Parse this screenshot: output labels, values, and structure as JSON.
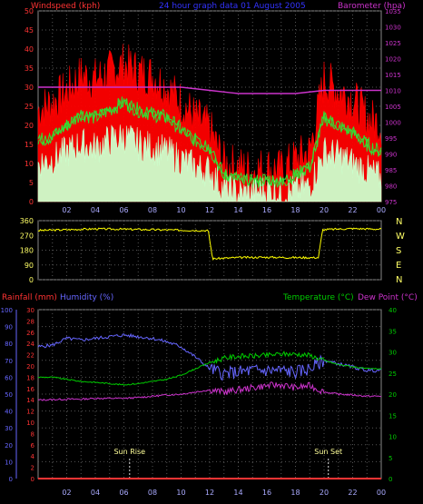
{
  "page_title": "24 hour graph data  01 August 2005",
  "chart_data": [
    {
      "type": "line",
      "id": "wind-pressure",
      "title": "24 hour graph data  01 August 2005",
      "ylabel_left": "Windspeed (kph)",
      "ylabel_right": "Barometer (hpa)",
      "ylim_left": [
        0,
        50
      ],
      "ylim_right": [
        975,
        1035
      ],
      "yticks_left": [
        "0",
        "5",
        "10",
        "15",
        "20",
        "25",
        "30",
        "35",
        "40",
        "45",
        "50"
      ],
      "yticks_right": [
        "975",
        "980",
        "985",
        "990",
        "995",
        "1000",
        "1005",
        "1010",
        "1015",
        "1020",
        "1025",
        "1030",
        "1035"
      ],
      "x_tick_labels": [
        "02",
        "04",
        "06",
        "08",
        "10",
        "12",
        "14",
        "16",
        "18",
        "20",
        "22",
        "00"
      ],
      "grid": true,
      "colors": {
        "gust": "#ff0000",
        "average": "#33dd33",
        "windspeed": "#ccffcc",
        "barometer": "#cc33cc",
        "left_axis": "#ff3333",
        "right_axis": "#cc33cc",
        "title": "#3333ff"
      },
      "series": [
        {
          "key": "gust",
          "color": "#ff0000",
          "x": [
            0,
            1,
            2,
            3,
            4,
            5,
            6,
            7,
            8,
            9,
            10,
            11,
            12,
            13,
            14,
            15,
            16,
            17,
            18,
            19,
            20,
            21,
            22,
            23,
            24
          ],
          "values": [
            24,
            26,
            29,
            33,
            32,
            34,
            36,
            34,
            33,
            30,
            26,
            22,
            19,
            10,
            9,
            8,
            9,
            8,
            11,
            13,
            32,
            29,
            27,
            22,
            20
          ]
        },
        {
          "key": "average",
          "color": "#33dd33",
          "x": [
            0,
            1,
            2,
            3,
            4,
            5,
            6,
            7,
            8,
            9,
            10,
            11,
            12,
            13,
            14,
            15,
            16,
            17,
            18,
            19,
            20,
            21,
            22,
            23,
            24
          ],
          "values": [
            16,
            17,
            20,
            23,
            22,
            24,
            26,
            24,
            23,
            22,
            19,
            16,
            14,
            7,
            6,
            5,
            6,
            5,
            7,
            9,
            22,
            20,
            18,
            15,
            13
          ]
        },
        {
          "key": "windspeed",
          "color": "#ccffcc",
          "x": [
            0,
            1,
            2,
            3,
            4,
            5,
            6,
            7,
            8,
            9,
            10,
            11,
            12,
            13,
            14,
            15,
            16,
            17,
            18,
            19,
            20,
            21,
            22,
            23,
            24
          ],
          "values": [
            10,
            11,
            13,
            15,
            14,
            16,
            17,
            15,
            14,
            13,
            11,
            9,
            8,
            3,
            2,
            2,
            3,
            2,
            3,
            4,
            13,
            12,
            10,
            8,
            6
          ]
        },
        {
          "key": "barometer",
          "color": "#cc33cc",
          "axis": "right",
          "x": [
            0,
            2,
            4,
            6,
            8,
            10,
            12,
            14,
            16,
            18,
            20,
            22,
            24
          ],
          "values": [
            1011,
            1011,
            1011,
            1011,
            1011,
            1011,
            1010,
            1009,
            1009,
            1009,
            1010,
            1010,
            1010
          ]
        }
      ]
    },
    {
      "type": "line",
      "id": "wind-direction",
      "ylim": [
        0,
        360
      ],
      "yticks": [
        "0",
        "90",
        "180",
        "270",
        "360"
      ],
      "compass_labels": [
        "N",
        "W",
        "S",
        "E",
        "N"
      ],
      "x_tick_labels": [
        "02",
        "04",
        "06",
        "08",
        "10",
        "12",
        "14",
        "16",
        "18",
        "20",
        "22",
        "00"
      ],
      "grid": true,
      "series": [
        {
          "key": "direction",
          "color": "#ffff00",
          "x": [
            0,
            2,
            4,
            6,
            8,
            10,
            11.9,
            12.2,
            14,
            16,
            18,
            19.6,
            19.9,
            22,
            24
          ],
          "values": [
            300,
            305,
            310,
            308,
            305,
            302,
            300,
            128,
            135,
            137,
            135,
            135,
            305,
            312,
            308
          ]
        }
      ]
    },
    {
      "type": "line",
      "id": "temp-humidity",
      "title_left": "Rainfall (mm)",
      "title_humidity": "Humidity (%)",
      "title_temperature": "Temperature (°C)",
      "title_dewpoint": "Dew Point (°C)",
      "ylim_humidity": [
        0,
        100
      ],
      "ylim_rain": [
        0,
        30
      ],
      "ylim_temp": [
        0,
        40
      ],
      "yticks_humidity": [
        "0",
        "10",
        "20",
        "30",
        "40",
        "50",
        "60",
        "70",
        "80",
        "90",
        "100"
      ],
      "yticks_rain": [
        "0",
        "2",
        "4",
        "6",
        "8",
        "10",
        "12",
        "14",
        "16",
        "18",
        "20",
        "22",
        "24",
        "26",
        "28",
        "30"
      ],
      "yticks_temp": [
        "0",
        "5",
        "10",
        "15",
        "20",
        "25",
        "30",
        "35",
        "40"
      ],
      "x_tick_labels": [
        "02",
        "04",
        "06",
        "08",
        "10",
        "12",
        "14",
        "16",
        "18",
        "20",
        "22",
        "00"
      ],
      "sun_rise_label": "Sun Rise",
      "sun_set_label": "Sun Set",
      "sun_rise_hour": 6.4,
      "sun_set_hour": 20.3,
      "grid": true,
      "colors": {
        "rain": "#ff3333",
        "humidity": "#6666ff",
        "temperature": "#00cc00",
        "dewpoint": "#cc33cc",
        "temp_axis": "#00cc00"
      },
      "series": [
        {
          "key": "humidity",
          "color": "#6666ff",
          "axis": "humidity",
          "x": [
            0,
            1,
            2,
            3,
            4,
            5,
            6,
            7,
            8,
            9,
            10,
            11,
            12,
            13,
            14,
            15,
            16,
            17,
            18,
            19,
            20,
            21,
            22,
            23,
            24
          ],
          "values": [
            78,
            79,
            83,
            82,
            83,
            84,
            85,
            84,
            83,
            81,
            78,
            72,
            65,
            62,
            63,
            64,
            64,
            64,
            63,
            65,
            70,
            68,
            66,
            64,
            64
          ]
        },
        {
          "key": "temperature",
          "color": "#00cc00",
          "axis": "temp",
          "x": [
            0,
            1,
            2,
            3,
            4,
            5,
            6,
            7,
            8,
            9,
            10,
            11,
            12,
            13,
            14,
            15,
            16,
            17,
            18,
            19,
            20,
            21,
            22,
            23,
            24
          ],
          "values": [
            24,
            24,
            23.5,
            23,
            22.8,
            22.5,
            22.2,
            22.5,
            23,
            23.5,
            24.5,
            26,
            27.5,
            28.5,
            29,
            29,
            29.2,
            29.5,
            29.5,
            29.2,
            28,
            27,
            26.5,
            26,
            26
          ]
        },
        {
          "key": "dewpoint",
          "color": "#cc33cc",
          "axis": "temp",
          "x": [
            0,
            1,
            2,
            3,
            4,
            5,
            6,
            7,
            8,
            9,
            10,
            11,
            12,
            13,
            14,
            15,
            16,
            17,
            18,
            19,
            20,
            21,
            22,
            23,
            24
          ],
          "values": [
            18.6,
            18.7,
            18.8,
            18.8,
            19,
            19,
            19,
            19.2,
            19.5,
            19.8,
            20,
            20.5,
            21,
            20.5,
            21,
            21.5,
            22,
            22.2,
            21.5,
            22,
            20.5,
            20,
            19.8,
            19.5,
            19.5
          ]
        },
        {
          "key": "rainfall",
          "color": "#ff3333",
          "axis": "rain",
          "x": [
            0,
            24
          ],
          "values": [
            0,
            0
          ]
        }
      ]
    }
  ]
}
